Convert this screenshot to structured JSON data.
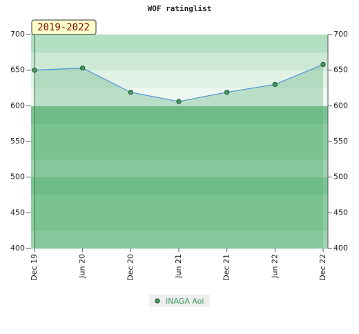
{
  "chart_data": {
    "type": "line",
    "title": "WOF ratinglist",
    "annotation": "2019-2022",
    "categories": [
      "Dec 19",
      "Jun 20",
      "Dec 20",
      "Jun 21",
      "Dec 21",
      "Jun 22",
      "Dec 22"
    ],
    "series": [
      {
        "name": "INAGA Aoi",
        "color": "#5b9bd5",
        "marker_color": "#3f9a5c",
        "values": [
          650,
          653,
          619,
          606,
          619,
          630,
          658
        ]
      }
    ],
    "ylim": [
      400,
      700
    ],
    "yticks": [
      400,
      450,
      500,
      550,
      600,
      650,
      700
    ],
    "y2lim": [
      400,
      700
    ],
    "y2ticks": [
      400,
      450,
      500,
      550,
      600,
      650,
      700
    ],
    "legend": "bottom"
  }
}
